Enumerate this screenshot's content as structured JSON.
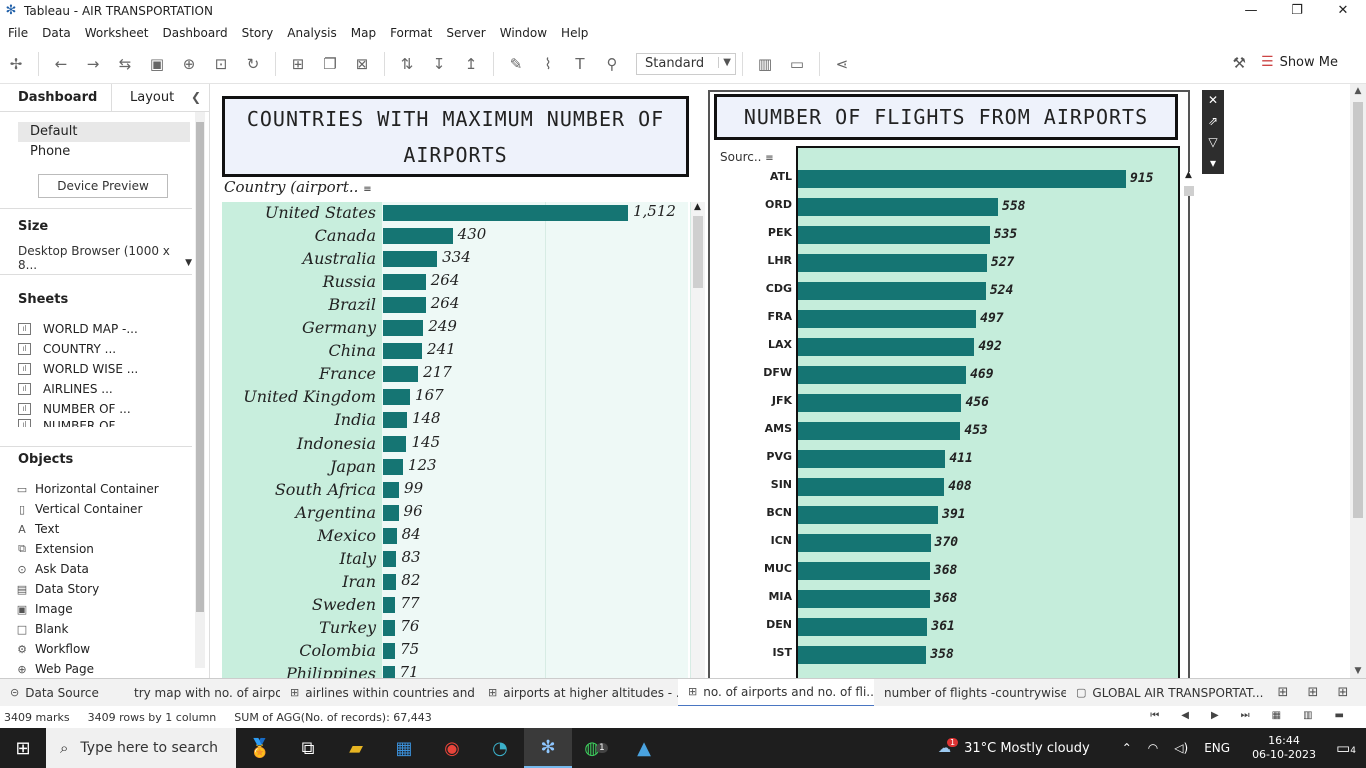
{
  "window": {
    "title": "Tableau - AIR TRANSPORTATION",
    "app_icon": "tableau-icon",
    "controls": [
      "—",
      "❐",
      "✕"
    ]
  },
  "menu": [
    "File",
    "Data",
    "Worksheet",
    "Dashboard",
    "Story",
    "Analysis",
    "Map",
    "Format",
    "Server",
    "Window",
    "Help"
  ],
  "toolbar": {
    "fit_select": "Standard",
    "show_me": "Show Me"
  },
  "left_panel": {
    "tabs": [
      "Dashboard",
      "Layout"
    ],
    "devices": [
      "Default",
      "Phone"
    ],
    "device_preview": "Device Preview",
    "size_heading": "Size",
    "size_value": "Desktop Browser (1000 x 8...",
    "sheets_heading": "Sheets",
    "sheets": [
      "WORLD MAP -...",
      "COUNTRY ...",
      "WORLD WISE ...",
      "AIRLINES ...",
      "NUMBER OF ...",
      "NUMBER OF ..."
    ],
    "objects_heading": "Objects",
    "objects": [
      {
        "label": "Horizontal Container",
        "icon": "horizontal-container-icon"
      },
      {
        "label": "Vertical Container",
        "icon": "vertical-container-icon"
      },
      {
        "label": "Text",
        "icon": "text-icon"
      },
      {
        "label": "Extension",
        "icon": "extension-icon"
      },
      {
        "label": "Ask Data",
        "icon": "ask-data-icon"
      },
      {
        "label": "Data Story",
        "icon": "data-story-icon"
      },
      {
        "label": "Image",
        "icon": "image-icon"
      },
      {
        "label": "Blank",
        "icon": "blank-icon"
      },
      {
        "label": "Workflow",
        "icon": "workflow-icon"
      },
      {
        "label": "Web Page",
        "icon": "web-page-icon"
      }
    ]
  },
  "chart_data": [
    {
      "type": "bar",
      "title": "COUNTRIES WITH MAXIMUM NUMBER OF AIRPORTS",
      "header": "Country (airport..",
      "categories": [
        "United States",
        "Canada",
        "Australia",
        "Russia",
        "Brazil",
        "Germany",
        "China",
        "France",
        "United Kingdom",
        "India",
        "Indonesia",
        "Japan",
        "South Africa",
        "Argentina",
        "Mexico",
        "Italy",
        "Iran",
        "Sweden",
        "Turkey",
        "Colombia",
        "Philippines"
      ],
      "values": [
        1512,
        430,
        334,
        264,
        264,
        249,
        241,
        217,
        167,
        148,
        145,
        123,
        99,
        96,
        84,
        83,
        82,
        77,
        76,
        75,
        71
      ],
      "value_labels": [
        "1,512",
        "430",
        "334",
        "264",
        "264",
        "249",
        "241",
        "217",
        "167",
        "148",
        "145",
        "123",
        "99",
        "96",
        "84",
        "83",
        "82",
        "77",
        "76",
        "75",
        "71"
      ],
      "color": "#157573",
      "grid": true
    },
    {
      "type": "bar",
      "title": "NUMBER OF FLIGHTS FROM AIRPORTS",
      "header": "Sourc..",
      "categories": [
        "ATL",
        "ORD",
        "PEK",
        "LHR",
        "CDG",
        "FRA",
        "LAX",
        "DFW",
        "JFK",
        "AMS",
        "PVG",
        "SIN",
        "BCN",
        "ICN",
        "MUC",
        "MIA",
        "DEN",
        "IST"
      ],
      "values": [
        915,
        558,
        535,
        527,
        524,
        497,
        492,
        469,
        456,
        453,
        411,
        408,
        391,
        370,
        368,
        368,
        361,
        358
      ],
      "color": "#157573",
      "grid": false
    }
  ],
  "sheet_tabs": [
    {
      "label": "Data Source",
      "icon": "database-icon",
      "active": false
    },
    {
      "label": "try map with no. of airpo...",
      "icon": "",
      "active": false
    },
    {
      "label": "airlines within countries and ...",
      "icon": "worksheet-icon",
      "active": false
    },
    {
      "label": "airports at higher altitudes - ...",
      "icon": "worksheet-icon",
      "active": false
    },
    {
      "label": "no. of airports and no. of fli...",
      "icon": "dashboard-icon",
      "active": true
    },
    {
      "label": "number of flights -countrywise",
      "icon": "",
      "active": false
    },
    {
      "label": "GLOBAL AIR TRANSPORTAT...",
      "icon": "story-icon",
      "active": false
    }
  ],
  "status": {
    "marks": "3409 marks",
    "rows": "3409 rows by 1 column",
    "sum": "SUM of AGG(No. of records): 67,443"
  },
  "taskbar": {
    "search_placeholder": "Type here to search",
    "weather": "31°C  Mostly cloudy",
    "weather_badge": "1",
    "lang": "ENG",
    "time": "16:44",
    "date": "06-10-2023",
    "notif_count": "4",
    "whatsapp_badge": "1"
  }
}
